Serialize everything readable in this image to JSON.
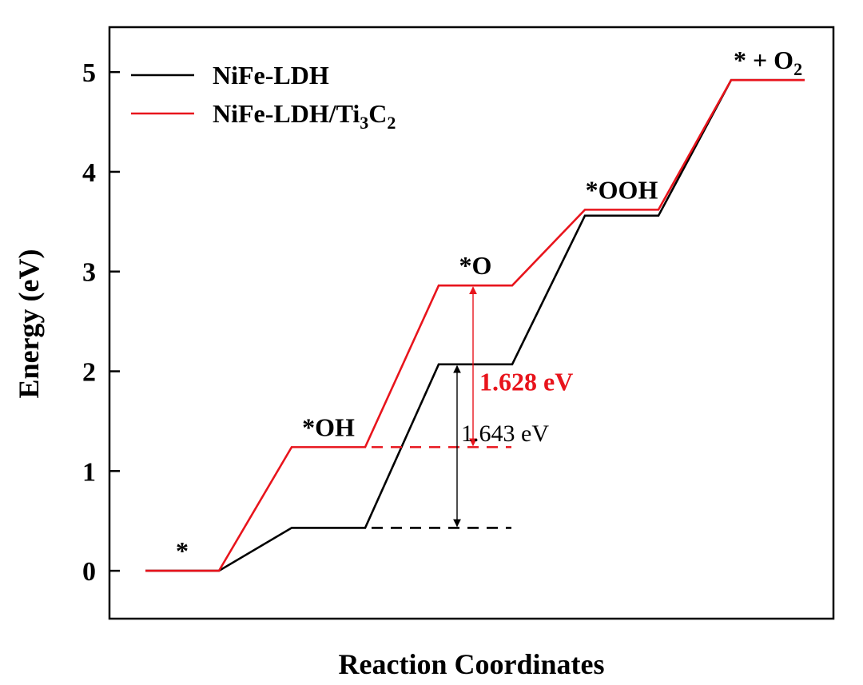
{
  "chart_data": {
    "type": "line",
    "title": "",
    "xlabel": "Reaction Coordinates",
    "ylabel": "Energy (eV)",
    "ylim": [
      -0.48,
      5.45
    ],
    "yticks": [
      0,
      1,
      2,
      3,
      4,
      5
    ],
    "grid": false,
    "legend_position": "top-left",
    "categories": [
      "*",
      "*OH",
      "*O",
      "*OOH",
      "* + O2"
    ],
    "series": [
      {
        "name": "NiFe-LDH",
        "color": "#000000",
        "values": [
          0.0,
          0.43,
          2.07,
          3.56,
          4.92
        ]
      },
      {
        "name": "NiFe-LDH/Ti3C2",
        "color": "#e8141c",
        "values": [
          0.0,
          1.24,
          2.86,
          3.62,
          4.92
        ]
      }
    ],
    "legend": [
      {
        "series": 0,
        "text": "NiFe-LDH",
        "sub": "",
        "tail": "",
        "sub2": ""
      },
      {
        "series": 1,
        "text": "NiFe-LDH/Ti",
        "sub": "3",
        "tail": "C",
        "sub2": "2"
      }
    ],
    "state_labels": [
      {
        "text": "*",
        "sub": ""
      },
      {
        "text": "*OH",
        "sub": ""
      },
      {
        "text": "*O",
        "sub": ""
      },
      {
        "text": "*OOH",
        "sub": ""
      },
      {
        "text": "* + O",
        "sub": "2"
      }
    ],
    "annotations": [
      {
        "text": "1.628 eV",
        "color": "#e8141c",
        "from": 1.24,
        "to": 2.86
      },
      {
        "text": "1.643 eV",
        "color": "#000000",
        "from": 0.43,
        "to": 2.07
      }
    ]
  }
}
